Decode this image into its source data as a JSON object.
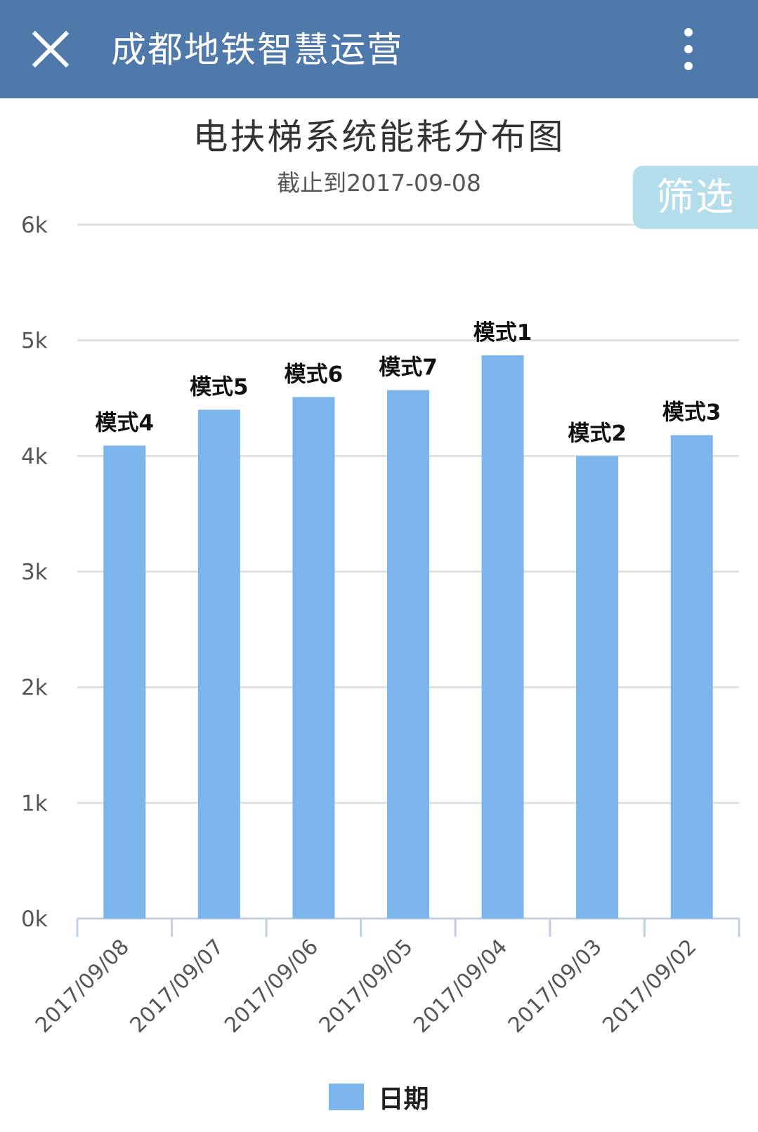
{
  "app": {
    "title": "成都地铁智慧运营",
    "close_icon": "close-icon",
    "more_icon": "more-vertical-icon",
    "header_color": "#4f78ab"
  },
  "filter_button": {
    "label": "筛选",
    "color": "#b4ddec"
  },
  "chart_data": {
    "type": "bar",
    "title": "电扶梯系统能耗分布图",
    "subtitle": "截止到2017-09-08",
    "categories": [
      "2017/09/08",
      "2017/09/07",
      "2017/09/06",
      "2017/09/05",
      "2017/09/04",
      "2017/09/03",
      "2017/09/02"
    ],
    "series": [
      {
        "name": "日期",
        "color": "#7cb5ec",
        "values": [
          4090,
          4400,
          4510,
          4570,
          4870,
          4000,
          4180
        ],
        "data_labels": [
          "模式4",
          "模式5",
          "模式6",
          "模式7",
          "模式1",
          "模式2",
          "模式3"
        ]
      }
    ],
    "yticks": [
      "0k",
      "1k",
      "2k",
      "3k",
      "4k",
      "5k",
      "6k"
    ],
    "ylim": [
      0,
      6000
    ],
    "grid": true,
    "legend_position": "bottom"
  }
}
